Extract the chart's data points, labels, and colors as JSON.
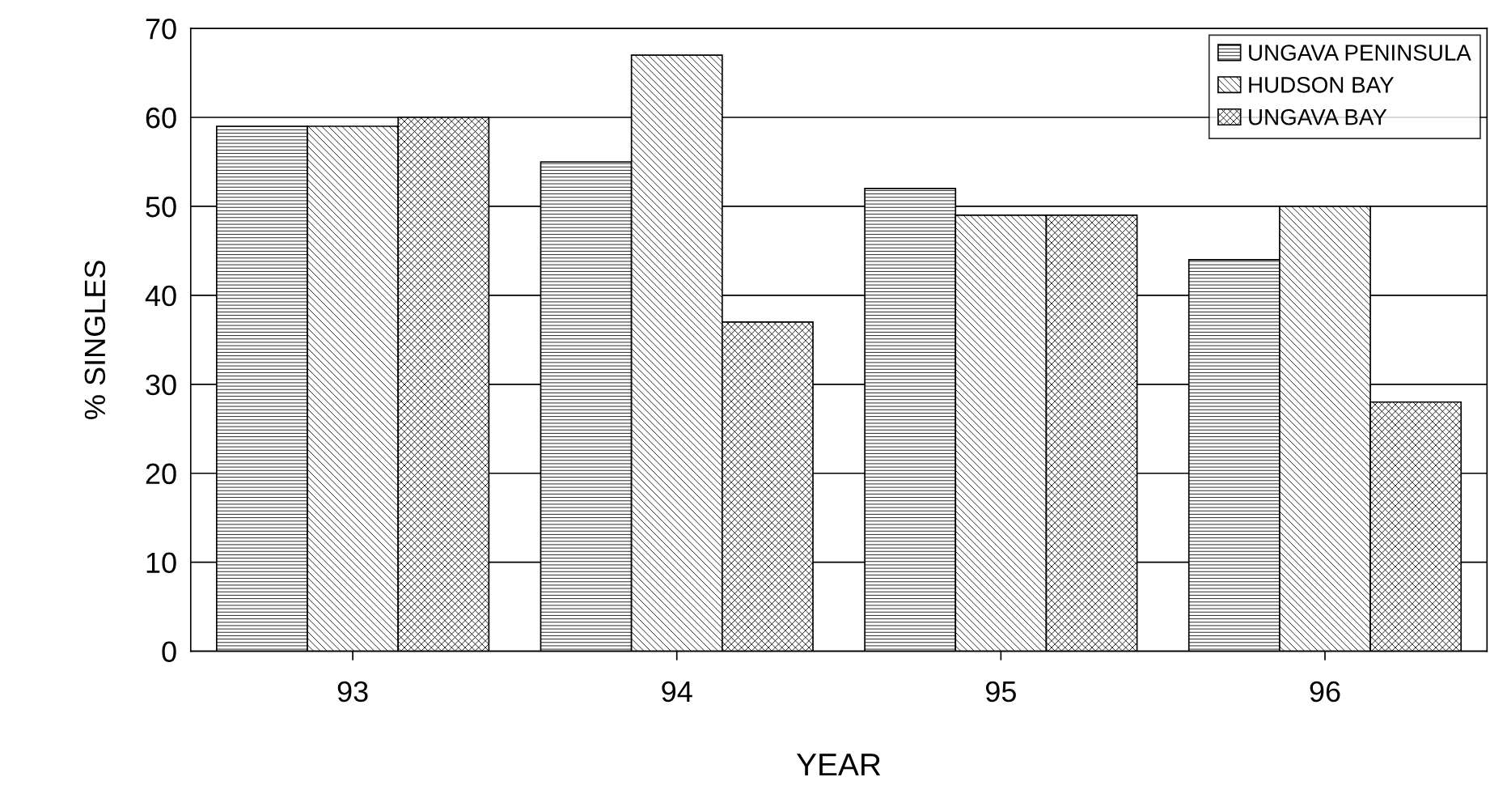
{
  "chart_data": {
    "type": "bar",
    "xlabel": "YEAR",
    "ylabel": "% SINGLES",
    "categories": [
      "93",
      "94",
      "95",
      "96"
    ],
    "series": [
      {
        "name": "UNGAVA PENINSULA",
        "color": "#000000",
        "values": [
          59,
          55,
          52,
          44
        ]
      },
      {
        "name": "HUDSON BAY",
        "color": "#000000",
        "values": [
          59,
          67,
          49,
          50
        ]
      },
      {
        "name": "UNGAVA BAY",
        "color": "#000000",
        "values": [
          60,
          37,
          49,
          28
        ]
      }
    ],
    "ylim": [
      0,
      70
    ],
    "yticks": [
      0,
      10,
      20,
      30,
      40,
      50,
      60,
      70
    ],
    "grid": "y",
    "legend": "top right"
  }
}
